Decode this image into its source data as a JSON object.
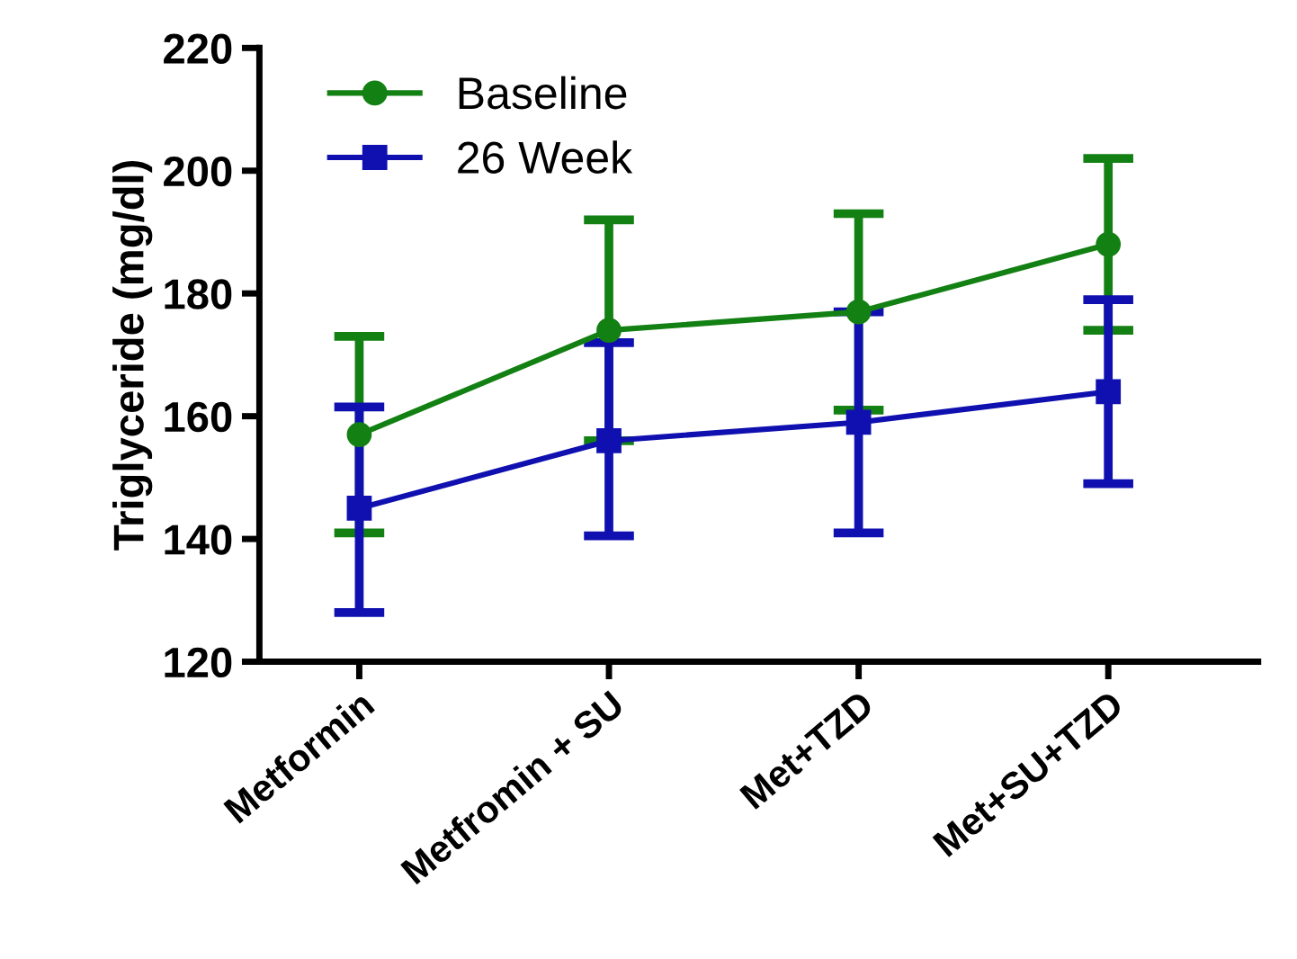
{
  "chart_data": {
    "type": "line",
    "ylabel": "Triglyceride (mg/dl)",
    "categories": [
      "Metformin",
      "Metfromin + SU",
      "Met+TZD",
      "Met+SU+TZD"
    ],
    "series": [
      {
        "name": "Baseline",
        "color": "#138013",
        "values": [
          157,
          174,
          177,
          188
        ],
        "errors": [
          16,
          18,
          16,
          14
        ],
        "marker": "circle"
      },
      {
        "name": "26 Week",
        "color": "#1010b0",
        "values": [
          145,
          156,
          159,
          164
        ],
        "errors": [
          [
            128,
            161.5
          ],
          [
            140.5,
            172
          ],
          18,
          [
            149,
            179
          ]
        ],
        "marker": "square"
      }
    ],
    "ylim": [
      120,
      220
    ],
    "yticks": [
      120,
      140,
      160,
      180,
      200,
      220
    ],
    "grid": false,
    "legend": "top left"
  }
}
